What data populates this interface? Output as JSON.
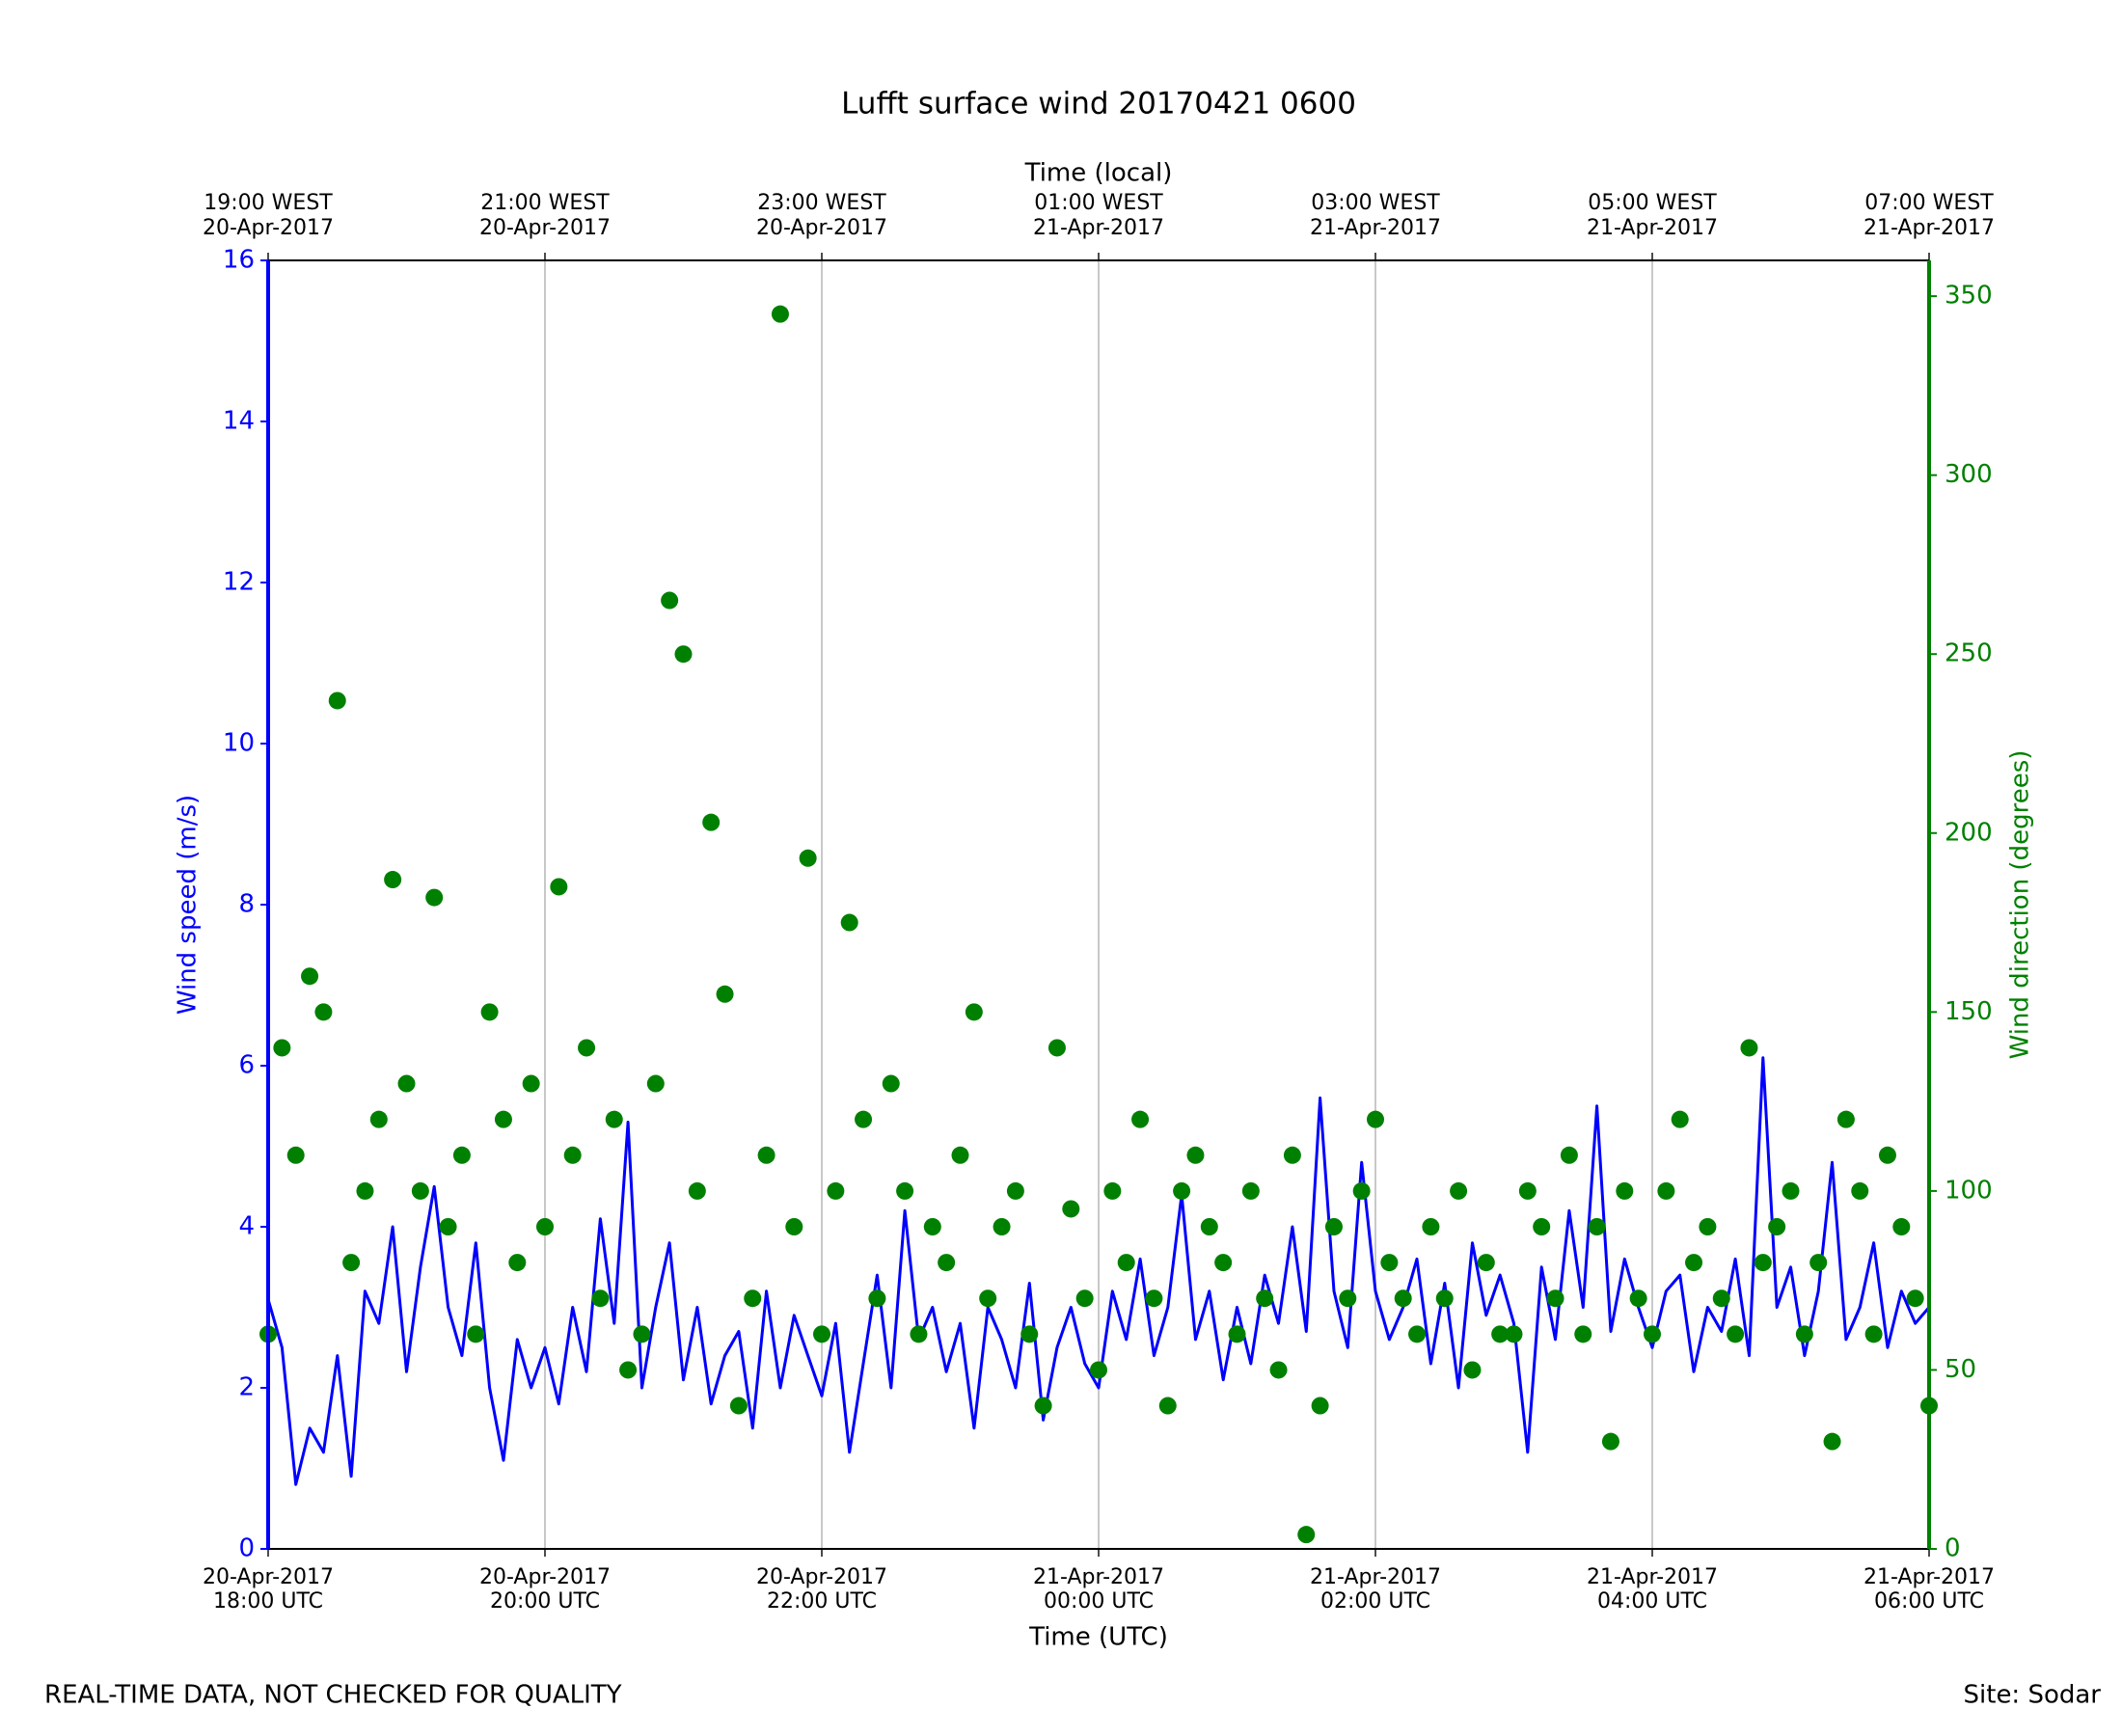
{
  "chart_data": {
    "type": "line",
    "title": "Lufft surface wind 20170421 0600",
    "x_label": "Time (UTC)",
    "x2_label": "Time (local)",
    "y_label": "Wind speed (m/s)",
    "y2_label": "Wind direction (degrees)",
    "footer_left": "REAL-TIME DATA, NOT CHECKED FOR QUALITY",
    "footer_right": "Site: Sodar",
    "grid": "x",
    "xlim": [
      "2017-04-20 18:00",
      "2017-04-21 06:00"
    ],
    "xticks": [
      {
        "value": "2017-04-20 18:00",
        "label": [
          "20-Apr-2017",
          "18:00 UTC"
        ]
      },
      {
        "value": "2017-04-20 20:00",
        "label": [
          "20-Apr-2017",
          "20:00 UTC"
        ]
      },
      {
        "value": "2017-04-20 22:00",
        "label": [
          "20-Apr-2017",
          "22:00 UTC"
        ]
      },
      {
        "value": "2017-04-21 00:00",
        "label": [
          "21-Apr-2017",
          "00:00 UTC"
        ]
      },
      {
        "value": "2017-04-21 02:00",
        "label": [
          "21-Apr-2017",
          "02:00 UTC"
        ]
      },
      {
        "value": "2017-04-21 04:00",
        "label": [
          "21-Apr-2017",
          "04:00 UTC"
        ]
      },
      {
        "value": "2017-04-21 06:00",
        "label": [
          "21-Apr-2017",
          "06:00 UTC"
        ]
      }
    ],
    "x2ticks": [
      {
        "value": "2017-04-20 18:00",
        "label": [
          "19:00 WEST",
          "20-Apr-2017"
        ]
      },
      {
        "value": "2017-04-20 20:00",
        "label": [
          "21:00 WEST",
          "20-Apr-2017"
        ]
      },
      {
        "value": "2017-04-20 22:00",
        "label": [
          "23:00 WEST",
          "20-Apr-2017"
        ]
      },
      {
        "value": "2017-04-21 00:00",
        "label": [
          "01:00 WEST",
          "21-Apr-2017"
        ]
      },
      {
        "value": "2017-04-21 02:00",
        "label": [
          "03:00 WEST",
          "21-Apr-2017"
        ]
      },
      {
        "value": "2017-04-21 04:00",
        "label": [
          "05:00 WEST",
          "21-Apr-2017"
        ]
      },
      {
        "value": "2017-04-21 06:00",
        "label": [
          "07:00 WEST",
          "21-Apr-2017"
        ]
      }
    ],
    "ylim": [
      0,
      16
    ],
    "yticks": [
      0,
      2,
      4,
      6,
      8,
      10,
      12,
      14,
      16
    ],
    "y_color": "#0000ff",
    "y2lim": [
      0,
      360
    ],
    "y2ticks": [
      0,
      50,
      100,
      150,
      200,
      250,
      300,
      350
    ],
    "y2_color": "#008000",
    "x": [
      "2017-04-20 18:00",
      "2017-04-20 18:06",
      "2017-04-20 18:12",
      "2017-04-20 18:18",
      "2017-04-20 18:24",
      "2017-04-20 18:30",
      "2017-04-20 18:36",
      "2017-04-20 18:42",
      "2017-04-20 18:48",
      "2017-04-20 18:54",
      "2017-04-20 19:00",
      "2017-04-20 19:06",
      "2017-04-20 19:12",
      "2017-04-20 19:18",
      "2017-04-20 19:24",
      "2017-04-20 19:30",
      "2017-04-20 19:36",
      "2017-04-20 19:42",
      "2017-04-20 19:48",
      "2017-04-20 19:54",
      "2017-04-20 20:00",
      "2017-04-20 20:06",
      "2017-04-20 20:12",
      "2017-04-20 20:18",
      "2017-04-20 20:24",
      "2017-04-20 20:30",
      "2017-04-20 20:36",
      "2017-04-20 20:42",
      "2017-04-20 20:48",
      "2017-04-20 20:54",
      "2017-04-20 21:00",
      "2017-04-20 21:06",
      "2017-04-20 21:12",
      "2017-04-20 21:18",
      "2017-04-20 21:24",
      "2017-04-20 21:30",
      "2017-04-20 21:36",
      "2017-04-20 21:42",
      "2017-04-20 21:48",
      "2017-04-20 21:54",
      "2017-04-20 22:00",
      "2017-04-20 22:06",
      "2017-04-20 22:12",
      "2017-04-20 22:18",
      "2017-04-20 22:24",
      "2017-04-20 22:30",
      "2017-04-20 22:36",
      "2017-04-20 22:42",
      "2017-04-20 22:48",
      "2017-04-20 22:54",
      "2017-04-20 23:00",
      "2017-04-20 23:06",
      "2017-04-20 23:12",
      "2017-04-20 23:18",
      "2017-04-20 23:24",
      "2017-04-20 23:30",
      "2017-04-20 23:36",
      "2017-04-20 23:42",
      "2017-04-20 23:48",
      "2017-04-20 23:54",
      "2017-04-21 00:00",
      "2017-04-21 00:06",
      "2017-04-21 00:12",
      "2017-04-21 00:18",
      "2017-04-21 00:24",
      "2017-04-21 00:30",
      "2017-04-21 00:36",
      "2017-04-21 00:42",
      "2017-04-21 00:48",
      "2017-04-21 00:54",
      "2017-04-21 01:00",
      "2017-04-21 01:06",
      "2017-04-21 01:12",
      "2017-04-21 01:18",
      "2017-04-21 01:24",
      "2017-04-21 01:30",
      "2017-04-21 01:36",
      "2017-04-21 01:42",
      "2017-04-21 01:48",
      "2017-04-21 01:54",
      "2017-04-21 02:00",
      "2017-04-21 02:06",
      "2017-04-21 02:12",
      "2017-04-21 02:18",
      "2017-04-21 02:24",
      "2017-04-21 02:30",
      "2017-04-21 02:36",
      "2017-04-21 02:42",
      "2017-04-21 02:48",
      "2017-04-21 02:54",
      "2017-04-21 03:00",
      "2017-04-21 03:06",
      "2017-04-21 03:12",
      "2017-04-21 03:18",
      "2017-04-21 03:24",
      "2017-04-21 03:30",
      "2017-04-21 03:36",
      "2017-04-21 03:42",
      "2017-04-21 03:48",
      "2017-04-21 03:54",
      "2017-04-21 04:00",
      "2017-04-21 04:06",
      "2017-04-21 04:12",
      "2017-04-21 04:18",
      "2017-04-21 04:24",
      "2017-04-21 04:30",
      "2017-04-21 04:36",
      "2017-04-21 04:42",
      "2017-04-21 04:48",
      "2017-04-21 04:54",
      "2017-04-21 05:00",
      "2017-04-21 05:06",
      "2017-04-21 05:12",
      "2017-04-21 05:18",
      "2017-04-21 05:24",
      "2017-04-21 05:30",
      "2017-04-21 05:36",
      "2017-04-21 05:42",
      "2017-04-21 05:48",
      "2017-04-21 05:54",
      "2017-04-21 06:00"
    ],
    "series": [
      {
        "name": "Wind speed",
        "type": "line",
        "axis": "y",
        "color": "#0000ff",
        "values": [
          3.1,
          2.5,
          0.8,
          1.5,
          1.2,
          2.4,
          0.9,
          3.2,
          2.8,
          4.0,
          2.2,
          3.5,
          4.5,
          3.0,
          2.4,
          3.8,
          2.0,
          1.1,
          2.6,
          2.0,
          2.5,
          1.8,
          3.0,
          2.2,
          4.1,
          2.8,
          5.3,
          2.0,
          3.0,
          3.8,
          2.1,
          3.0,
          1.8,
          2.4,
          2.7,
          1.5,
          3.2,
          2.0,
          2.9,
          2.4,
          1.9,
          2.8,
          1.2,
          2.3,
          3.4,
          2.0,
          4.2,
          2.6,
          3.0,
          2.2,
          2.8,
          1.5,
          3.0,
          2.6,
          2.0,
          3.3,
          1.6,
          2.5,
          3.0,
          2.3,
          2.0,
          3.2,
          2.6,
          3.6,
          2.4,
          3.0,
          4.4,
          2.6,
          3.2,
          2.1,
          3.0,
          2.3,
          3.4,
          2.8,
          4.0,
          2.7,
          5.6,
          3.2,
          2.5,
          4.8,
          3.2,
          2.6,
          3.0,
          3.6,
          2.3,
          3.3,
          2.0,
          3.8,
          2.9,
          3.4,
          2.8,
          1.2,
          3.5,
          2.6,
          4.2,
          3.0,
          5.5,
          2.7,
          3.6,
          3.0,
          2.5,
          3.2,
          3.4,
          2.2,
          3.0,
          2.7,
          3.6,
          2.4,
          6.1,
          3.0,
          3.5,
          2.4,
          3.2,
          4.8,
          2.6,
          3.0,
          3.8,
          2.5,
          3.2,
          2.8,
          3.0
        ]
      },
      {
        "name": "Wind direction",
        "type": "scatter",
        "axis": "y2",
        "color": "#008000",
        "values": [
          60,
          140,
          110,
          160,
          150,
          237,
          80,
          100,
          120,
          187,
          130,
          100,
          182,
          90,
          110,
          60,
          150,
          120,
          80,
          130,
          90,
          185,
          110,
          140,
          70,
          120,
          50,
          60,
          130,
          265,
          250,
          100,
          203,
          155,
          40,
          70,
          110,
          345,
          90,
          193,
          60,
          100,
          175,
          120,
          70,
          130,
          100,
          60,
          90,
          80,
          110,
          150,
          70,
          90,
          100,
          60,
          40,
          140,
          95,
          70,
          50,
          100,
          80,
          120,
          70,
          40,
          100,
          110,
          90,
          80,
          60,
          100,
          70,
          50,
          110,
          4,
          40,
          90,
          70,
          100,
          120,
          80,
          70,
          60,
          90,
          70,
          100,
          50,
          80,
          60,
          60,
          100,
          90,
          70,
          110,
          60,
          90,
          30,
          100,
          70,
          60,
          100,
          120,
          80,
          90,
          70,
          60,
          140,
          80,
          90,
          100,
          60,
          80,
          30,
          120,
          100,
          60,
          110,
          90,
          70,
          40
        ]
      }
    ]
  }
}
